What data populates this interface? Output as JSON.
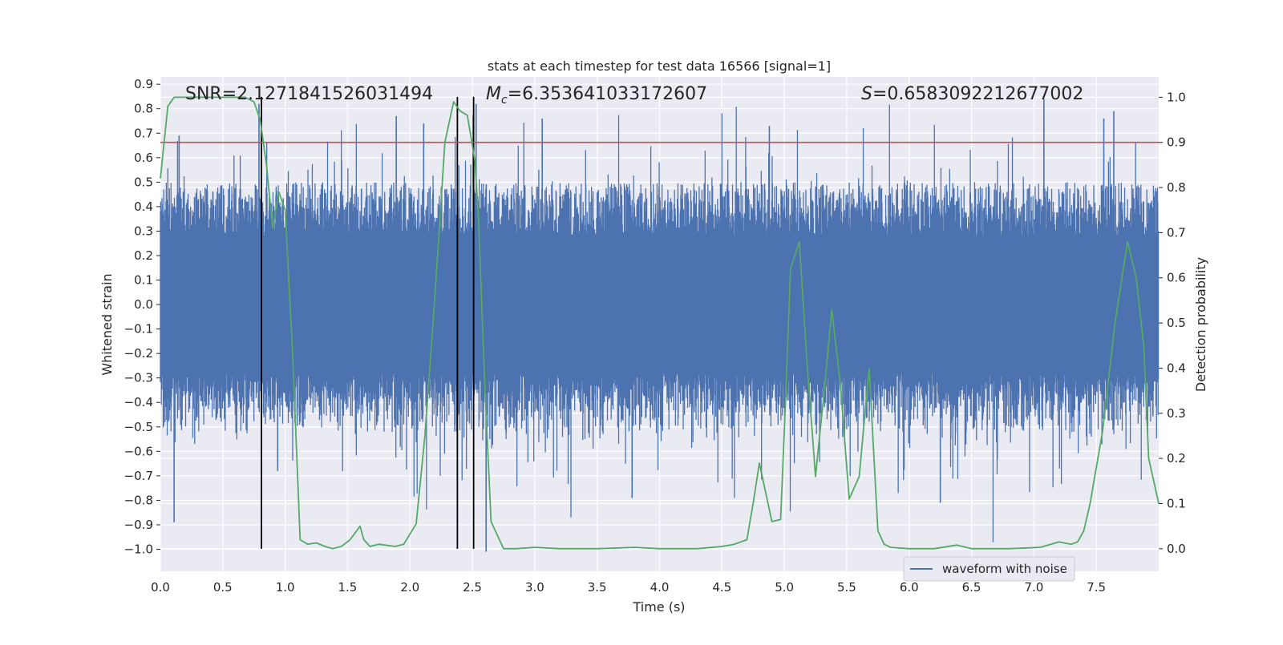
{
  "chart_data": {
    "type": "line",
    "title": "stats at each timestep for test data 16566 [signal=1]",
    "xlabel": "Time (s)",
    "ylabel_left": "Whitened strain",
    "ylabel_right": "Detection probability",
    "xlim": [
      0.0,
      8.0
    ],
    "ylim_left": [
      -1.09,
      0.93
    ],
    "ylim_right": [
      -0.05,
      1.045
    ],
    "x_ticks": [
      "0.0",
      "0.5",
      "1.0",
      "1.5",
      "2.0",
      "2.5",
      "3.0",
      "3.5",
      "4.0",
      "4.5",
      "5.0",
      "5.5",
      "6.0",
      "6.5",
      "7.0",
      "7.5"
    ],
    "y_ticks_left": [
      "0.9",
      "0.8",
      "0.7",
      "0.6",
      "0.5",
      "0.4",
      "0.3",
      "0.2",
      "0.1",
      "0.0",
      "−0.1",
      "−0.2",
      "−0.3",
      "−0.4",
      "−0.5",
      "−0.6",
      "−0.7",
      "−0.8",
      "−0.9",
      "−1.0"
    ],
    "y_ticks_right": [
      "0.0",
      "0.1",
      "0.2",
      "0.3",
      "0.4",
      "0.5",
      "0.6",
      "0.7",
      "0.8",
      "0.9",
      "1.0"
    ],
    "grid": true,
    "legend": {
      "placement": "lower-right",
      "entries": [
        "waveform with noise"
      ]
    },
    "annotations": {
      "snr": "SNR=2.1271841526031494",
      "mc_symbol": "M",
      "mc_sub": "c",
      "mc_value": "=6.353641033172607",
      "s_symbol": "S",
      "s_value": "=0.6583092212677002"
    },
    "threshold": {
      "axis": "right",
      "value": 0.9
    },
    "vertical_lines": [
      0.81,
      2.38,
      2.51
    ],
    "waveform": {
      "name": "waveform with noise",
      "axis": "left",
      "envelope": {
        "core": 0.28,
        "typical": 0.5,
        "peak": 0.84
      },
      "notable_spikes": [
        {
          "t": 0.11,
          "v": -0.89
        },
        {
          "t": 0.15,
          "v": 0.69
        },
        {
          "t": 0.79,
          "v": 0.82
        },
        {
          "t": 0.94,
          "v": -0.68
        },
        {
          "t": 1.89,
          "v": 0.77
        },
        {
          "t": 2.11,
          "v": 0.74
        },
        {
          "t": 2.53,
          "v": 0.82
        },
        {
          "t": 2.61,
          "v": -1.01
        },
        {
          "t": 3.06,
          "v": 0.76
        },
        {
          "t": 3.78,
          "v": -0.79
        },
        {
          "t": 4.88,
          "v": 0.73
        },
        {
          "t": 6.25,
          "v": -0.81
        },
        {
          "t": 7.08,
          "v": 0.84
        },
        {
          "t": 7.56,
          "v": 0.76
        },
        {
          "t": 7.64,
          "v": 0.79
        }
      ]
    },
    "probability": {
      "axis": "right",
      "x": [
        0.0,
        0.06,
        0.11,
        0.17,
        0.3,
        0.5,
        0.68,
        0.75,
        0.8,
        0.85,
        0.9,
        0.95,
        1.0,
        1.06,
        1.12,
        1.18,
        1.25,
        1.32,
        1.38,
        1.45,
        1.52,
        1.6,
        1.63,
        1.68,
        1.75,
        1.88,
        1.95,
        2.05,
        2.12,
        2.2,
        2.28,
        2.35,
        2.4,
        2.46,
        2.52,
        2.55,
        2.6,
        2.65,
        2.75,
        2.85,
        3.0,
        3.2,
        3.5,
        3.8,
        4.0,
        4.3,
        4.5,
        4.6,
        4.7,
        4.75,
        4.8,
        4.9,
        4.97,
        5.0,
        5.05,
        5.12,
        5.18,
        5.25,
        5.32,
        5.38,
        5.45,
        5.52,
        5.6,
        5.68,
        5.75,
        5.8,
        5.85,
        6.0,
        6.2,
        6.38,
        6.5,
        6.8,
        7.05,
        7.2,
        7.3,
        7.35,
        7.4,
        7.45,
        7.55,
        7.65,
        7.75,
        7.82,
        7.88,
        7.92,
        8.0
      ],
      "values": [
        0.82,
        0.98,
        1.0,
        1.0,
        1.0,
        1.0,
        1.0,
        0.99,
        0.95,
        0.85,
        0.71,
        0.79,
        0.75,
        0.43,
        0.02,
        0.01,
        0.013,
        0.005,
        0.0,
        0.005,
        0.02,
        0.05,
        0.02,
        0.005,
        0.01,
        0.005,
        0.01,
        0.055,
        0.25,
        0.56,
        0.9,
        0.99,
        0.97,
        0.96,
        0.86,
        0.73,
        0.36,
        0.06,
        0.0,
        0.0,
        0.003,
        0.0,
        0.0,
        0.003,
        0.0,
        0.0,
        0.005,
        0.01,
        0.02,
        0.1,
        0.19,
        0.06,
        0.065,
        0.26,
        0.62,
        0.68,
        0.42,
        0.16,
        0.35,
        0.53,
        0.36,
        0.11,
        0.16,
        0.4,
        0.04,
        0.01,
        0.003,
        0.0,
        0.0,
        0.008,
        0.0,
        0.0,
        0.003,
        0.015,
        0.01,
        0.015,
        0.04,
        0.1,
        0.26,
        0.5,
        0.68,
        0.6,
        0.45,
        0.2,
        0.1
      ]
    },
    "colors": {
      "background": "#eaeaf2",
      "grid": "#ffffff",
      "waveform": "#4c72b0",
      "probability": "#55a868",
      "threshold": "#c44e52",
      "vertical_lines": "#000000"
    }
  }
}
